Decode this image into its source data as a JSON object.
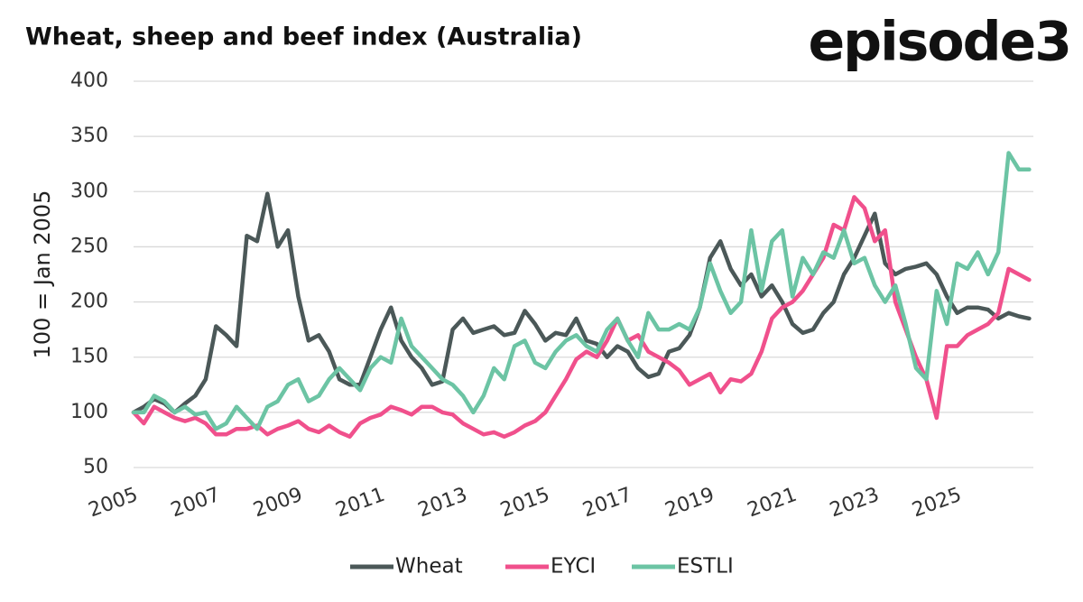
{
  "chart_data": {
    "type": "line",
    "title": "Wheat, sheep and beef index (Australia)",
    "brand": "episode3",
    "ylabel": "100 = Jan 2005",
    "x": [
      2005,
      2005.25,
      2005.5,
      2005.75,
      2006,
      2006.25,
      2006.5,
      2006.75,
      2007,
      2007.25,
      2007.5,
      2007.75,
      2008,
      2008.25,
      2008.5,
      2008.75,
      2009,
      2009.25,
      2009.5,
      2009.75,
      2010,
      2010.25,
      2010.5,
      2010.75,
      2011,
      2011.25,
      2011.5,
      2011.75,
      2012,
      2012.25,
      2012.5,
      2012.75,
      2013,
      2013.25,
      2013.5,
      2013.75,
      2014,
      2014.25,
      2014.5,
      2014.75,
      2015,
      2015.25,
      2015.5,
      2015.75,
      2016,
      2016.25,
      2016.5,
      2016.75,
      2017,
      2017.25,
      2017.5,
      2017.75,
      2018,
      2018.25,
      2018.5,
      2018.75,
      2019,
      2019.25,
      2019.5,
      2019.75,
      2020,
      2020.25,
      2020.5,
      2020.75,
      2021,
      2021.25,
      2021.5,
      2021.75,
      2022,
      2022.25,
      2022.5,
      2022.75,
      2023,
      2023.25,
      2023.5,
      2023.75,
      2024,
      2024.25,
      2024.5,
      2024.75,
      2025,
      2025.25,
      2025.5,
      2025.75,
      2026,
      2026.25,
      2026.5,
      2026.75
    ],
    "series": [
      {
        "name": "Wheat",
        "color": "#4b5858",
        "values": [
          100,
          105,
          112,
          108,
          100,
          108,
          115,
          130,
          178,
          170,
          160,
          260,
          255,
          298,
          250,
          265,
          205,
          165,
          170,
          155,
          130,
          125,
          125,
          150,
          175,
          195,
          165,
          150,
          140,
          125,
          128,
          175,
          185,
          172,
          175,
          178,
          170,
          172,
          192,
          180,
          165,
          172,
          170,
          185,
          165,
          162,
          150,
          160,
          155,
          140,
          132,
          135,
          155,
          158,
          170,
          195,
          240,
          255,
          230,
          215,
          225,
          205,
          215,
          200,
          180,
          172,
          175,
          190,
          200,
          225,
          240,
          260,
          280,
          235,
          225,
          230,
          232,
          235,
          225,
          205,
          190,
          195,
          195,
          193,
          185,
          190,
          187,
          185
        ]
      },
      {
        "name": "EYCI",
        "color": "#f0508c",
        "values": [
          100,
          90,
          105,
          100,
          95,
          92,
          95,
          90,
          80,
          80,
          85,
          85,
          88,
          80,
          85,
          88,
          92,
          85,
          82,
          88,
          82,
          78,
          90,
          95,
          98,
          105,
          102,
          98,
          105,
          105,
          100,
          98,
          90,
          85,
          80,
          82,
          78,
          82,
          88,
          92,
          100,
          115,
          130,
          148,
          155,
          150,
          165,
          185,
          165,
          170,
          155,
          150,
          145,
          138,
          125,
          130,
          135,
          118,
          130,
          128,
          135,
          155,
          185,
          195,
          200,
          210,
          225,
          240,
          270,
          265,
          295,
          285,
          255,
          265,
          200,
          175,
          150,
          130,
          95,
          160,
          160,
          170,
          175,
          180,
          190,
          230,
          225,
          220
        ]
      },
      {
        "name": "ESTLI",
        "color": "#6cc4a4",
        "values": [
          100,
          100,
          115,
          110,
          100,
          105,
          98,
          100,
          85,
          90,
          105,
          95,
          85,
          105,
          110,
          125,
          130,
          110,
          115,
          130,
          140,
          130,
          120,
          140,
          150,
          145,
          185,
          160,
          150,
          140,
          130,
          125,
          115,
          100,
          115,
          140,
          130,
          160,
          165,
          145,
          140,
          155,
          165,
          170,
          160,
          155,
          175,
          185,
          165,
          150,
          190,
          175,
          175,
          180,
          175,
          195,
          235,
          210,
          190,
          200,
          265,
          210,
          255,
          265,
          205,
          240,
          225,
          245,
          240,
          265,
          235,
          240,
          215,
          200,
          215,
          180,
          140,
          130,
          210,
          180,
          235,
          230,
          245,
          225,
          245,
          335,
          320,
          320
        ]
      }
    ],
    "xlim": [
      2005,
      2026.85
    ],
    "xticks": [
      2005,
      2007,
      2009,
      2011,
      2013,
      2015,
      2017,
      2019,
      2021,
      2023,
      2025
    ],
    "ylim": [
      50,
      400
    ],
    "yticks": [
      50,
      100,
      150,
      200,
      250,
      300,
      350,
      400
    ],
    "grid": true,
    "legend": "bottom"
  }
}
